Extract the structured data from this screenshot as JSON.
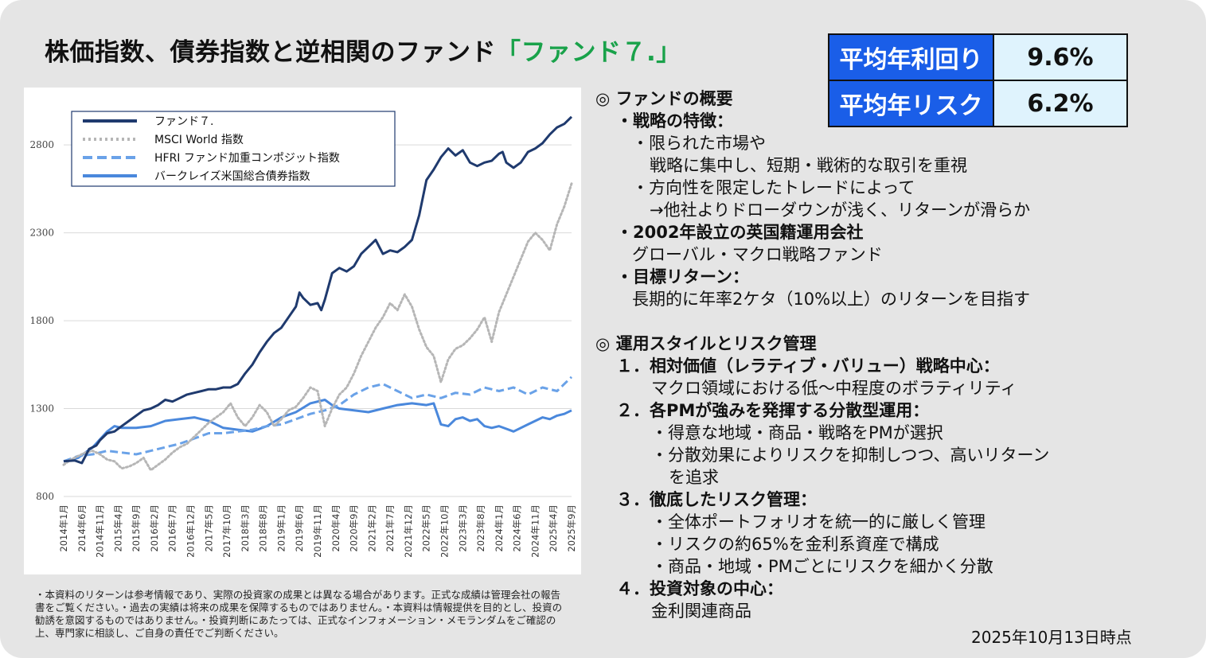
{
  "title": {
    "main": "株価指数、債券指数と逆相関のファンド",
    "accent": "「ファンド７.」"
  },
  "stats": [
    {
      "label": "平均年利回り",
      "value": "9.6%"
    },
    {
      "label": "平均年リスク",
      "value": "6.2%"
    }
  ],
  "chart_data": {
    "type": "line",
    "title": "",
    "xlabel": "",
    "ylabel": "",
    "ylim": [
      800,
      3000
    ],
    "yticks": [
      800,
      1300,
      1800,
      2300,
      2800
    ],
    "grid": "horizontal",
    "legend_position": "top-left",
    "x_tick_labels": [
      "2014年1月",
      "2014年6月",
      "2014年11月",
      "2015年4月",
      "2015年9月",
      "2016年2月",
      "2016年7月",
      "2016年12月",
      "2017年5月",
      "2017年10月",
      "2018年3月",
      "2018年8月",
      "2019年1月",
      "2019年6月",
      "2019年11月",
      "2020年4月",
      "2020年9月",
      "2021年2月",
      "2021年7月",
      "2021年12月",
      "2022年5月",
      "2022年10月",
      "2023年3月",
      "2023年8月",
      "2024年1月",
      "2024年6月",
      "2024年11月",
      "2025年4月",
      "2025年9月"
    ],
    "x_tick_index": [
      0,
      5,
      10,
      15,
      20,
      25,
      30,
      35,
      40,
      45,
      50,
      55,
      60,
      65,
      70,
      75,
      80,
      85,
      90,
      95,
      100,
      105,
      110,
      115,
      120,
      125,
      130,
      135,
      140
    ],
    "x_range": [
      0,
      140
    ],
    "series": [
      {
        "name": "ファンド７.",
        "color": "#1f3a6e",
        "dash": "solid",
        "width": 3,
        "points": [
          [
            0,
            1000
          ],
          [
            3,
            1005
          ],
          [
            5,
            990
          ],
          [
            7,
            1070
          ],
          [
            9,
            1090
          ],
          [
            10,
            1120
          ],
          [
            12,
            1160
          ],
          [
            14,
            1170
          ],
          [
            16,
            1200
          ],
          [
            18,
            1230
          ],
          [
            20,
            1260
          ],
          [
            22,
            1290
          ],
          [
            24,
            1300
          ],
          [
            26,
            1320
          ],
          [
            28,
            1350
          ],
          [
            30,
            1340
          ],
          [
            32,
            1360
          ],
          [
            34,
            1380
          ],
          [
            36,
            1390
          ],
          [
            38,
            1400
          ],
          [
            40,
            1410
          ],
          [
            42,
            1410
          ],
          [
            44,
            1420
          ],
          [
            46,
            1420
          ],
          [
            48,
            1440
          ],
          [
            50,
            1500
          ],
          [
            52,
            1550
          ],
          [
            54,
            1620
          ],
          [
            56,
            1680
          ],
          [
            58,
            1730
          ],
          [
            60,
            1760
          ],
          [
            62,
            1820
          ],
          [
            64,
            1880
          ],
          [
            65,
            1960
          ],
          [
            66,
            1930
          ],
          [
            68,
            1890
          ],
          [
            70,
            1900
          ],
          [
            71,
            1860
          ],
          [
            72,
            1920
          ],
          [
            74,
            2070
          ],
          [
            76,
            2100
          ],
          [
            78,
            2080
          ],
          [
            80,
            2110
          ],
          [
            82,
            2180
          ],
          [
            84,
            2220
          ],
          [
            86,
            2260
          ],
          [
            88,
            2180
          ],
          [
            90,
            2200
          ],
          [
            92,
            2190
          ],
          [
            94,
            2220
          ],
          [
            96,
            2260
          ],
          [
            98,
            2400
          ],
          [
            100,
            2600
          ],
          [
            102,
            2660
          ],
          [
            104,
            2730
          ],
          [
            106,
            2780
          ],
          [
            108,
            2740
          ],
          [
            110,
            2770
          ],
          [
            112,
            2700
          ],
          [
            114,
            2680
          ],
          [
            116,
            2700
          ],
          [
            118,
            2710
          ],
          [
            120,
            2750
          ],
          [
            121,
            2760
          ],
          [
            122,
            2700
          ],
          [
            124,
            2670
          ],
          [
            126,
            2700
          ],
          [
            128,
            2760
          ],
          [
            130,
            2780
          ],
          [
            132,
            2810
          ],
          [
            134,
            2860
          ],
          [
            136,
            2900
          ],
          [
            138,
            2920
          ],
          [
            140,
            2960
          ]
        ]
      },
      {
        "name": "MSCI  World 指数",
        "color": "#b6b6b6",
        "dash": "dot",
        "width": 3,
        "points": [
          [
            0,
            980
          ],
          [
            2,
            1010
          ],
          [
            4,
            1030
          ],
          [
            6,
            1050
          ],
          [
            8,
            1060
          ],
          [
            10,
            1040
          ],
          [
            12,
            1010
          ],
          [
            14,
            1000
          ],
          [
            16,
            960
          ],
          [
            18,
            970
          ],
          [
            20,
            990
          ],
          [
            22,
            1020
          ],
          [
            24,
            950
          ],
          [
            26,
            980
          ],
          [
            28,
            1010
          ],
          [
            30,
            1050
          ],
          [
            32,
            1080
          ],
          [
            34,
            1100
          ],
          [
            36,
            1140
          ],
          [
            38,
            1180
          ],
          [
            40,
            1220
          ],
          [
            42,
            1250
          ],
          [
            44,
            1280
          ],
          [
            46,
            1330
          ],
          [
            48,
            1250
          ],
          [
            50,
            1200
          ],
          [
            52,
            1250
          ],
          [
            54,
            1320
          ],
          [
            56,
            1280
          ],
          [
            58,
            1200
          ],
          [
            60,
            1240
          ],
          [
            62,
            1290
          ],
          [
            64,
            1310
          ],
          [
            66,
            1360
          ],
          [
            68,
            1420
          ],
          [
            70,
            1400
          ],
          [
            72,
            1200
          ],
          [
            74,
            1300
          ],
          [
            76,
            1380
          ],
          [
            78,
            1420
          ],
          [
            80,
            1500
          ],
          [
            82,
            1600
          ],
          [
            84,
            1680
          ],
          [
            86,
            1760
          ],
          [
            88,
            1820
          ],
          [
            90,
            1900
          ],
          [
            92,
            1860
          ],
          [
            94,
            1950
          ],
          [
            96,
            1880
          ],
          [
            98,
            1750
          ],
          [
            100,
            1650
          ],
          [
            102,
            1600
          ],
          [
            104,
            1450
          ],
          [
            106,
            1580
          ],
          [
            108,
            1640
          ],
          [
            110,
            1660
          ],
          [
            112,
            1700
          ],
          [
            114,
            1750
          ],
          [
            116,
            1820
          ],
          [
            118,
            1680
          ],
          [
            120,
            1850
          ],
          [
            122,
            1950
          ],
          [
            124,
            2050
          ],
          [
            126,
            2150
          ],
          [
            128,
            2250
          ],
          [
            130,
            2300
          ],
          [
            132,
            2260
          ],
          [
            134,
            2200
          ],
          [
            136,
            2350
          ],
          [
            138,
            2450
          ],
          [
            140,
            2580
          ]
        ]
      },
      {
        "name": "HFRI  ファンド加重コンポジット指数",
        "color": "#6aa2e8",
        "dash": "dash",
        "width": 3,
        "points": [
          [
            0,
            1000
          ],
          [
            4,
            1030
          ],
          [
            8,
            1040
          ],
          [
            12,
            1060
          ],
          [
            16,
            1050
          ],
          [
            20,
            1040
          ],
          [
            24,
            1060
          ],
          [
            28,
            1080
          ],
          [
            32,
            1100
          ],
          [
            36,
            1130
          ],
          [
            40,
            1160
          ],
          [
            44,
            1160
          ],
          [
            48,
            1170
          ],
          [
            52,
            1180
          ],
          [
            56,
            1200
          ],
          [
            60,
            1210
          ],
          [
            64,
            1240
          ],
          [
            68,
            1270
          ],
          [
            72,
            1290
          ],
          [
            76,
            1320
          ],
          [
            80,
            1380
          ],
          [
            84,
            1420
          ],
          [
            88,
            1440
          ],
          [
            90,
            1420
          ],
          [
            92,
            1400
          ],
          [
            96,
            1360
          ],
          [
            100,
            1380
          ],
          [
            104,
            1360
          ],
          [
            108,
            1390
          ],
          [
            112,
            1380
          ],
          [
            116,
            1420
          ],
          [
            120,
            1400
          ],
          [
            124,
            1420
          ],
          [
            128,
            1380
          ],
          [
            132,
            1420
          ],
          [
            136,
            1400
          ],
          [
            138,
            1440
          ],
          [
            140,
            1480
          ]
        ]
      },
      {
        "name": "バークレイズ米国総合債券指数",
        "color": "#4a88dc",
        "dash": "solid",
        "width": 3,
        "points": [
          [
            0,
            1000
          ],
          [
            4,
            1020
          ],
          [
            8,
            1080
          ],
          [
            12,
            1170
          ],
          [
            14,
            1200
          ],
          [
            16,
            1190
          ],
          [
            20,
            1190
          ],
          [
            24,
            1200
          ],
          [
            28,
            1230
          ],
          [
            32,
            1240
          ],
          [
            36,
            1250
          ],
          [
            40,
            1230
          ],
          [
            44,
            1190
          ],
          [
            48,
            1180
          ],
          [
            52,
            1170
          ],
          [
            56,
            1200
          ],
          [
            60,
            1250
          ],
          [
            64,
            1280
          ],
          [
            68,
            1330
          ],
          [
            72,
            1350
          ],
          [
            74,
            1320
          ],
          [
            76,
            1300
          ],
          [
            80,
            1290
          ],
          [
            84,
            1280
          ],
          [
            88,
            1300
          ],
          [
            92,
            1320
          ],
          [
            96,
            1330
          ],
          [
            100,
            1320
          ],
          [
            102,
            1330
          ],
          [
            104,
            1210
          ],
          [
            106,
            1200
          ],
          [
            108,
            1240
          ],
          [
            110,
            1250
          ],
          [
            112,
            1230
          ],
          [
            114,
            1240
          ],
          [
            116,
            1200
          ],
          [
            118,
            1190
          ],
          [
            120,
            1200
          ],
          [
            124,
            1170
          ],
          [
            128,
            1210
          ],
          [
            130,
            1230
          ],
          [
            132,
            1250
          ],
          [
            134,
            1240
          ],
          [
            136,
            1260
          ],
          [
            138,
            1270
          ],
          [
            140,
            1290
          ]
        ]
      }
    ]
  },
  "overview": {
    "heading": "◎ ファンドの概要",
    "strategy_title": "・戦略の特徴：",
    "strategy_lines": [
      "・限られた市場や",
      "戦略に集中し、短期・戦術的な取引を重視",
      "・方向性を限定したトレードによって",
      "→他社よりドローダウンが浅く、リターンが滑らか"
    ],
    "company_title": "・2002年設立の英国籍運用会社",
    "company_line": "グローバル・マクロ戦略ファンド",
    "target_title": "・目標リターン：",
    "target_line": "長期的に年率2ケタ（10%以上）のリターンを目指す",
    "style_heading": "◎ 運用スタイルとリスク管理",
    "items": [
      {
        "title": "１．相対価値（レラティブ・バリュー）戦略中心：",
        "lines": [
          "マクロ領域における低～中程度のボラティリティ"
        ]
      },
      {
        "title": "２．各PMが強みを発揮する分散型運用：",
        "lines": [
          "・得意な地域・商品・戦略をPMが選択",
          "・分散効果によりリスクを抑制しつつ、高いリターン",
          "を追求"
        ]
      },
      {
        "title": "３．徹底したリスク管理：",
        "lines": [
          "・全体ポートフォリオを統一的に厳しく管理",
          "・リスクの約65%を金利系資産で構成",
          "・商品・地域・PMごとにリスクを細かく分散"
        ]
      },
      {
        "title": "４．投資対象の中心：",
        "lines": [
          "金利関連商品"
        ]
      }
    ]
  },
  "disclaimer": "・本資料のリターンは参考情報であり、実際の投資家の成果とは異なる場合があります。正式な成績は管理会社の報告書をご覧ください。・過去の実績は将来の成果を保障するものではありません。・本資料は情報提供を目的とし、投資の勧誘を意図するものではありません。・投資判断にあたっては、正式なインフォメーション・メモランダムをご確認の上、専門家に相談し、ご自身の責任でご判断ください。",
  "as_of": "2025年10月13日時点"
}
